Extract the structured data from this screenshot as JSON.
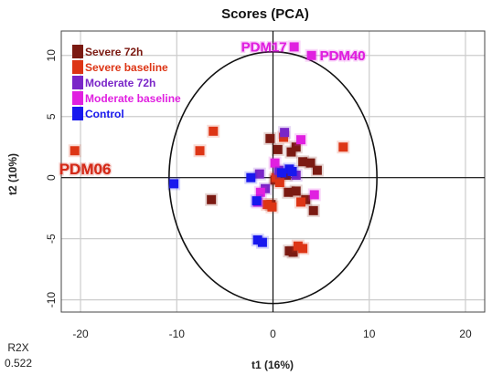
{
  "chart_data": {
    "type": "scatter",
    "title": "Scores (PCA)",
    "xlabel": "t1 (16%)",
    "ylabel": "t2 (10%)",
    "xlim": [
      -22,
      22
    ],
    "ylim": [
      -11,
      12
    ],
    "xticks": [
      -20,
      -10,
      0,
      10,
      20
    ],
    "yticks": [
      -10,
      -5,
      0,
      5,
      10
    ],
    "grid": true,
    "legend_position": "top-left",
    "ellipse": {
      "cx": 0,
      "cy": 0,
      "rx": 10.8,
      "ry": 10.3
    },
    "r2x": {
      "label": "R2X",
      "value": "0.522"
    },
    "series": [
      {
        "name": "Severe 72h",
        "color": "#7b1a12",
        "points": [
          [
            -0.3,
            3.2
          ],
          [
            0.5,
            2.3
          ],
          [
            1.9,
            2.1
          ],
          [
            2.4,
            2.5
          ],
          [
            3.1,
            1.3
          ],
          [
            3.9,
            1.2
          ],
          [
            4.6,
            0.6
          ],
          [
            1.4,
            0.2
          ],
          [
            0.2,
            -0.2
          ],
          [
            1.6,
            -1.2
          ],
          [
            2.4,
            -1.1
          ],
          [
            3.4,
            -1.8
          ],
          [
            4.2,
            -2.7
          ],
          [
            -6.4,
            -1.8
          ],
          [
            -0.2,
            -2.2
          ],
          [
            1.7,
            -6.0
          ],
          [
            2.1,
            -6.1
          ]
        ]
      },
      {
        "name": "Severe baseline",
        "color": "#dd3515",
        "points": [
          [
            -20.6,
            2.2
          ],
          [
            -6.2,
            3.8
          ],
          [
            -7.6,
            2.2
          ],
          [
            1.1,
            3.3
          ],
          [
            7.3,
            2.5
          ],
          [
            0.3,
            0.0
          ],
          [
            -0.6,
            -2.2
          ],
          [
            -0.1,
            -2.4
          ],
          [
            2.9,
            -2.0
          ],
          [
            2.6,
            -5.6
          ],
          [
            3.1,
            -5.8
          ],
          [
            0.7,
            -0.4
          ]
        ]
      },
      {
        "name": "Moderate 72h",
        "color": "#7a26c8",
        "points": [
          [
            1.2,
            3.7
          ],
          [
            -1.4,
            0.3
          ],
          [
            2.4,
            0.2
          ],
          [
            0.6,
            0.6
          ],
          [
            -0.8,
            -0.9
          ]
        ]
      },
      {
        "name": "Moderate baseline",
        "color": "#e020e0",
        "points": [
          [
            2.2,
            10.7
          ],
          [
            4.0,
            10.0
          ],
          [
            -1.3,
            -1.2
          ],
          [
            0.2,
            1.2
          ],
          [
            2.9,
            3.1
          ],
          [
            -1.6,
            -2.0
          ],
          [
            4.3,
            -1.4
          ]
        ]
      },
      {
        "name": "Control",
        "color": "#1818ee",
        "points": [
          [
            -10.3,
            -0.5
          ],
          [
            -2.3,
            0.0
          ],
          [
            -1.7,
            -1.9
          ],
          [
            -1.6,
            -5.1
          ],
          [
            -1.1,
            -5.3
          ],
          [
            1.7,
            0.7
          ],
          [
            2.0,
            0.5
          ],
          [
            0.9,
            0.4
          ]
        ]
      }
    ],
    "annotations": [
      {
        "text": "PDM17",
        "x": 2.2,
        "y": 10.7,
        "color": "#e020e0",
        "anchor": "end"
      },
      {
        "text": "PDM40",
        "x": 4.0,
        "y": 10.0,
        "color": "#e020e0",
        "anchor": "start"
      },
      {
        "text": "PDM06",
        "x": -20.6,
        "y": 2.2,
        "color": "#d42a18",
        "anchor": "below"
      }
    ]
  }
}
